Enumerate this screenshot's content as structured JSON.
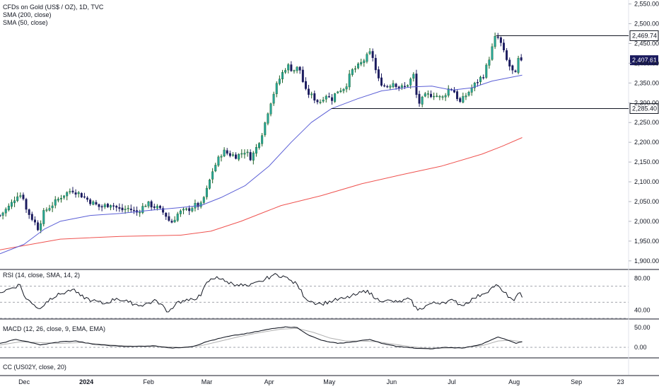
{
  "legends": {
    "main": "CFDs on Gold (US$ / OZ), 1D, TVC",
    "sma200": "SMA (200, close)",
    "sma50": "SMA (50, close)",
    "rsi": "RSI (14, close, SMA, 14, 2)",
    "macd": "MACD (12, 26, close, 9, EMA, EMA)",
    "cc": "CC (US02Y, close, 20)"
  },
  "colors": {
    "up": "#26a69a",
    "up_dark": "#1b5e20",
    "down": "#1a1a5e",
    "sma50": "#5b5fd6",
    "sma200": "#ef5350",
    "rsi": "#131722",
    "macd": "#131722",
    "signal": "#b0b0b0",
    "level": "#131722",
    "last_bg": "#1a1a5e"
  },
  "chart_data": [
    {
      "type": "candlestick",
      "ylim": [
        1880,
        2560
      ],
      "yticks": [
        "2,550.00",
        "2,500.00",
        "2,450.00",
        "2,400.00",
        "2,350.00",
        "2,300.00",
        "2,250.00",
        "2,200.00",
        "2,150.00",
        "2,100.00",
        "2,050.00",
        "2,000.00",
        "1,950.00",
        "1,900.00"
      ],
      "xticks": [
        {
          "label": "Dec",
          "day": 12
        },
        {
          "label": "2024",
          "day": 43
        },
        {
          "label": "Feb",
          "day": 74
        },
        {
          "label": "Mar",
          "day": 103
        },
        {
          "label": "Apr",
          "day": 134
        },
        {
          "label": "May",
          "day": 164
        },
        {
          "label": "Jun",
          "day": 195
        },
        {
          "label": "Jul",
          "day": 225
        },
        {
          "label": "Aug",
          "day": 256
        },
        {
          "label": "Sep",
          "day": 287
        },
        {
          "label": "23",
          "day": 309
        }
      ],
      "x_range_days": [
        0,
        313
      ],
      "last_day": 260,
      "key_points": [
        {
          "day": 0,
          "close": 2015
        },
        {
          "day": 5,
          "close": 2040
        },
        {
          "day": 9,
          "close": 2070
        },
        {
          "day": 12,
          "close": 2060
        },
        {
          "day": 13,
          "close": 2030
        },
        {
          "day": 17,
          "close": 2000
        },
        {
          "day": 19,
          "close": 1982
        },
        {
          "day": 22,
          "close": 2025
        },
        {
          "day": 26,
          "close": 2042
        },
        {
          "day": 31,
          "close": 2065
        },
        {
          "day": 36,
          "close": 2080
        },
        {
          "day": 40,
          "close": 2068
        },
        {
          "day": 45,
          "close": 2050
        },
        {
          "day": 50,
          "close": 2035
        },
        {
          "day": 55,
          "close": 2045
        },
        {
          "day": 60,
          "close": 2028
        },
        {
          "day": 64,
          "close": 2033
        },
        {
          "day": 68,
          "close": 2022
        },
        {
          "day": 73,
          "close": 2045
        },
        {
          "day": 78,
          "close": 2035
        },
        {
          "day": 82,
          "close": 2020
        },
        {
          "day": 85,
          "close": 1995
        },
        {
          "day": 89,
          "close": 2022
        },
        {
          "day": 93,
          "close": 2028
        },
        {
          "day": 97,
          "close": 2040
        },
        {
          "day": 100,
          "close": 2040
        },
        {
          "day": 103,
          "close": 2080
        },
        {
          "day": 106,
          "close": 2130
        },
        {
          "day": 109,
          "close": 2160
        },
        {
          "day": 111,
          "close": 2178
        },
        {
          "day": 114,
          "close": 2170
        },
        {
          "day": 118,
          "close": 2165
        },
        {
          "day": 122,
          "close": 2178
        },
        {
          "day": 125,
          "close": 2160
        },
        {
          "day": 128,
          "close": 2190
        },
        {
          "day": 131,
          "close": 2230
        },
        {
          "day": 134,
          "close": 2290
        },
        {
          "day": 137,
          "close": 2335
        },
        {
          "day": 140,
          "close": 2370
        },
        {
          "day": 143,
          "close": 2395
        },
        {
          "day": 146,
          "close": 2382
        },
        {
          "day": 149,
          "close": 2390
        },
        {
          "day": 152,
          "close": 2330
        },
        {
          "day": 155,
          "close": 2318
        },
        {
          "day": 159,
          "close": 2300
        },
        {
          "day": 162,
          "close": 2322
        },
        {
          "day": 165,
          "close": 2308
        },
        {
          "day": 168,
          "close": 2330
        },
        {
          "day": 172,
          "close": 2340
        },
        {
          "day": 175,
          "close": 2380
        },
        {
          "day": 178,
          "close": 2390
        },
        {
          "day": 182,
          "close": 2412
        },
        {
          "day": 185,
          "close": 2430
        },
        {
          "day": 188,
          "close": 2360
        },
        {
          "day": 192,
          "close": 2340
        },
        {
          "day": 196,
          "close": 2352
        },
        {
          "day": 199,
          "close": 2338
        },
        {
          "day": 202,
          "close": 2340
        },
        {
          "day": 206,
          "close": 2370
        },
        {
          "day": 208,
          "close": 2295
        },
        {
          "day": 212,
          "close": 2318
        },
        {
          "day": 216,
          "close": 2322
        },
        {
          "day": 220,
          "close": 2310
        },
        {
          "day": 224,
          "close": 2340
        },
        {
          "day": 226,
          "close": 2330
        },
        {
          "day": 229,
          "close": 2300
        },
        {
          "day": 233,
          "close": 2325
        },
        {
          "day": 237,
          "close": 2350
        },
        {
          "day": 241,
          "close": 2372
        },
        {
          "day": 244,
          "close": 2420
        },
        {
          "day": 247,
          "close": 2472
        },
        {
          "day": 249,
          "close": 2455
        },
        {
          "day": 252,
          "close": 2410
        },
        {
          "day": 255,
          "close": 2380
        },
        {
          "day": 257,
          "close": 2370
        },
        {
          "day": 259,
          "close": 2440
        },
        {
          "day": 260,
          "close": 2407.61
        }
      ],
      "sma50": [
        [
          0,
          1918
        ],
        [
          12,
          1942
        ],
        [
          22,
          1980
        ],
        [
          30,
          2000
        ],
        [
          45,
          2015
        ],
        [
          60,
          2020
        ],
        [
          75,
          2028
        ],
        [
          90,
          2035
        ],
        [
          100,
          2040
        ],
        [
          110,
          2060
        ],
        [
          122,
          2090
        ],
        [
          134,
          2140
        ],
        [
          145,
          2200
        ],
        [
          155,
          2250
        ],
        [
          165,
          2285
        ],
        [
          178,
          2310
        ],
        [
          190,
          2330
        ],
        [
          205,
          2340
        ],
        [
          215,
          2342
        ],
        [
          225,
          2332
        ],
        [
          235,
          2338
        ],
        [
          245,
          2355
        ],
        [
          255,
          2365
        ],
        [
          260,
          2370
        ]
      ],
      "sma200": [
        [
          0,
          1928
        ],
        [
          30,
          1955
        ],
        [
          60,
          1962
        ],
        [
          90,
          1965
        ],
        [
          105,
          1975
        ],
        [
          120,
          2000
        ],
        [
          140,
          2040
        ],
        [
          160,
          2065
        ],
        [
          180,
          2095
        ],
        [
          200,
          2118
        ],
        [
          220,
          2140
        ],
        [
          240,
          2170
        ],
        [
          250,
          2190
        ],
        [
          260,
          2212
        ]
      ],
      "levels": [
        {
          "value": 2469.74,
          "label": "2,469.74",
          "from_day": 247
        },
        {
          "value": 2285.4,
          "label": "2,285.40",
          "from_day": 165
        }
      ],
      "last_price": {
        "value": 2407.61,
        "label": "2,407.61"
      }
    },
    {
      "type": "line",
      "name": "RSI",
      "ylim": [
        30,
        90
      ],
      "yticks": [
        "80.00",
        "40.00"
      ],
      "levels": [
        70,
        50,
        30
      ],
      "key_points": [
        [
          0,
          62
        ],
        [
          6,
          68
        ],
        [
          10,
          72
        ],
        [
          12,
          58
        ],
        [
          16,
          48
        ],
        [
          20,
          42
        ],
        [
          25,
          55
        ],
        [
          30,
          60
        ],
        [
          36,
          66
        ],
        [
          40,
          58
        ],
        [
          46,
          52
        ],
        [
          52,
          48
        ],
        [
          58,
          55
        ],
        [
          64,
          50
        ],
        [
          70,
          46
        ],
        [
          78,
          52
        ],
        [
          84,
          38
        ],
        [
          88,
          50
        ],
        [
          94,
          52
        ],
        [
          100,
          58
        ],
        [
          103,
          75
        ],
        [
          108,
          82
        ],
        [
          112,
          76
        ],
        [
          118,
          72
        ],
        [
          124,
          70
        ],
        [
          130,
          76
        ],
        [
          136,
          84
        ],
        [
          141,
          83
        ],
        [
          144,
          78
        ],
        [
          148,
          72
        ],
        [
          152,
          55
        ],
        [
          156,
          50
        ],
        [
          160,
          48
        ],
        [
          166,
          52
        ],
        [
          172,
          55
        ],
        [
          178,
          60
        ],
        [
          183,
          65
        ],
        [
          187,
          54
        ],
        [
          192,
          52
        ],
        [
          198,
          50
        ],
        [
          204,
          54
        ],
        [
          208,
          40
        ],
        [
          214,
          48
        ],
        [
          220,
          50
        ],
        [
          226,
          52
        ],
        [
          230,
          46
        ],
        [
          236,
          55
        ],
        [
          240,
          60
        ],
        [
          244,
          66
        ],
        [
          247,
          72
        ],
        [
          250,
          64
        ],
        [
          254,
          56
        ],
        [
          256,
          52
        ],
        [
          259,
          62
        ],
        [
          260,
          56
        ]
      ]
    },
    {
      "type": "line",
      "name": "MACD",
      "ylim": [
        -25,
        70
      ],
      "yticks": [
        "50.00",
        "0.00"
      ],
      "zero_line": 0,
      "macd": [
        [
          0,
          10
        ],
        [
          8,
          20
        ],
        [
          14,
          14
        ],
        [
          20,
          6
        ],
        [
          30,
          14
        ],
        [
          38,
          16
        ],
        [
          46,
          8
        ],
        [
          56,
          4
        ],
        [
          66,
          2
        ],
        [
          76,
          4
        ],
        [
          86,
          -2
        ],
        [
          96,
          2
        ],
        [
          104,
          16
        ],
        [
          114,
          28
        ],
        [
          124,
          36
        ],
        [
          134,
          46
        ],
        [
          142,
          52
        ],
        [
          148,
          50
        ],
        [
          154,
          30
        ],
        [
          160,
          18
        ],
        [
          168,
          10
        ],
        [
          176,
          14
        ],
        [
          184,
          20
        ],
        [
          190,
          10
        ],
        [
          198,
          2
        ],
        [
          206,
          -2
        ],
        [
          214,
          -4
        ],
        [
          222,
          0
        ],
        [
          230,
          -2
        ],
        [
          240,
          8
        ],
        [
          248,
          26
        ],
        [
          254,
          16
        ],
        [
          257,
          10
        ],
        [
          260,
          14
        ]
      ],
      "signal": [
        [
          0,
          6
        ],
        [
          10,
          14
        ],
        [
          20,
          12
        ],
        [
          30,
          10
        ],
        [
          40,
          12
        ],
        [
          50,
          8
        ],
        [
          60,
          4
        ],
        [
          70,
          2
        ],
        [
          80,
          2
        ],
        [
          90,
          0
        ],
        [
          100,
          4
        ],
        [
          110,
          16
        ],
        [
          120,
          28
        ],
        [
          130,
          38
        ],
        [
          140,
          46
        ],
        [
          148,
          48
        ],
        [
          156,
          38
        ],
        [
          164,
          24
        ],
        [
          172,
          16
        ],
        [
          180,
          16
        ],
        [
          188,
          14
        ],
        [
          196,
          8
        ],
        [
          204,
          2
        ],
        [
          212,
          -2
        ],
        [
          220,
          -2
        ],
        [
          230,
          -1
        ],
        [
          240,
          4
        ],
        [
          248,
          16
        ],
        [
          254,
          18
        ],
        [
          260,
          14
        ]
      ]
    }
  ]
}
